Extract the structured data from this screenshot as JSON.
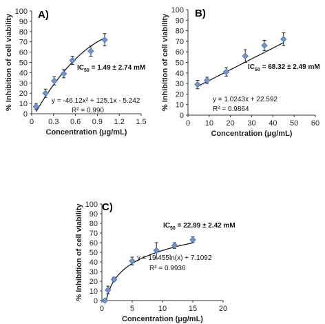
{
  "chart_data": [
    {
      "type": "scatter",
      "panel_label": "A)",
      "xlabel": "Concentration (μg/mL)",
      "ylabel": "% Inhibition of cell viability",
      "xlim": [
        0,
        1.5
      ],
      "ylim": [
        0,
        100
      ],
      "xticks": [
        "0",
        "0.3",
        "0.6",
        "0.9",
        "1.2",
        "1.5"
      ],
      "yticks": [
        "0",
        "10",
        "20",
        "30",
        "40",
        "50",
        "60",
        "70",
        "80",
        "90",
        "100"
      ],
      "points": [
        {
          "x": 0.06,
          "y": 7,
          "err": 3
        },
        {
          "x": 0.19,
          "y": 20,
          "err": 4
        },
        {
          "x": 0.31,
          "y": 32,
          "err": 4
        },
        {
          "x": 0.44,
          "y": 39,
          "err": 4
        },
        {
          "x": 0.56,
          "y": 52,
          "err": 4
        },
        {
          "x": 0.81,
          "y": 61,
          "err": 5
        },
        {
          "x": 1.0,
          "y": 72,
          "err": 6
        }
      ],
      "fit": {
        "kind": "poly2",
        "a": -46.12,
        "b": 125.1,
        "c": -5.242,
        "x_range": [
          0.06,
          1.0
        ]
      },
      "annotations": {
        "ic50": "IC50 = 1.49 ± 2.74 mM",
        "ic50_parts": [
          "IC",
          "50",
          " = 1.49 ± 2.74 mM"
        ],
        "equation": "y = -46.12x² + 125.1x - 5.242",
        "r2": "R² = 0.990"
      }
    },
    {
      "type": "scatter",
      "panel_label": "B)",
      "xlabel": "Concentration (μg/mL)",
      "ylabel": "% Inhibition of cell viability",
      "xlim": [
        0,
        60
      ],
      "ylim": [
        0,
        100
      ],
      "xticks": [
        "0",
        "10",
        "20",
        "30",
        "40",
        "50",
        "60"
      ],
      "yticks": [
        "0",
        "10",
        "20",
        "30",
        "40",
        "50",
        "60",
        "70",
        "80",
        "90",
        "100"
      ],
      "points": [
        {
          "x": 4.5,
          "y": 29,
          "err": 4
        },
        {
          "x": 9,
          "y": 33,
          "err": 3
        },
        {
          "x": 18,
          "y": 41,
          "err": 4
        },
        {
          "x": 27,
          "y": 56,
          "err": 6
        },
        {
          "x": 36,
          "y": 66,
          "err": 5
        },
        {
          "x": 45,
          "y": 72,
          "err": 6
        }
      ],
      "fit": {
        "kind": "linear",
        "m": 1.0243,
        "b": 22.592,
        "x_range": [
          4.5,
          45
        ]
      },
      "annotations": {
        "ic50": "IC50 = 68.32 ± 2.49 mM",
        "ic50_parts": [
          "IC",
          "50",
          " = 68.32 ± 2.49 mM"
        ],
        "equation": "y = 1.0243x + 22.592",
        "r2": "R² = 0.9864"
      }
    },
    {
      "type": "scatter",
      "panel_label": "C)",
      "xlabel": "Concentration (μg/mL)",
      "ylabel": "% Inhibition of cell viability",
      "xlim": [
        0,
        20
      ],
      "ylim": [
        0,
        100
      ],
      "xticks": [
        "0",
        "5",
        "10",
        "15",
        "20"
      ],
      "yticks": [
        "0",
        "10",
        "20",
        "30",
        "40",
        "50",
        "60",
        "70",
        "80",
        "90",
        "100"
      ],
      "points": [
        {
          "x": 0.5,
          "y": 0,
          "err": 0
        },
        {
          "x": 1,
          "y": 11,
          "err": 4
        },
        {
          "x": 2,
          "y": 22,
          "err": 2
        },
        {
          "x": 5,
          "y": 41,
          "err": 4
        },
        {
          "x": 9,
          "y": 52,
          "err": 8
        },
        {
          "x": 12,
          "y": 57,
          "err": 3
        },
        {
          "x": 15,
          "y": 63,
          "err": 3
        }
      ],
      "fit": {
        "kind": "log",
        "a": 19.455,
        "b": 7.1092,
        "x_range": [
          0.7,
          15
        ]
      },
      "annotations": {
        "ic50": "IC50 = 22.99 ± 2.42 mM",
        "ic50_parts": [
          "IC",
          "50",
          " = 22.99 ± 2.42 mM"
        ],
        "equation": "y = 19.455ln(x) + 7.1092",
        "r2": "R² = 0.9936"
      }
    }
  ],
  "colors": {
    "marker": "#6f96cf",
    "marker_stroke": "#4f74ad",
    "errorbar": "#222222",
    "fit_line": "#1a1a1a",
    "axis": "#333333"
  }
}
